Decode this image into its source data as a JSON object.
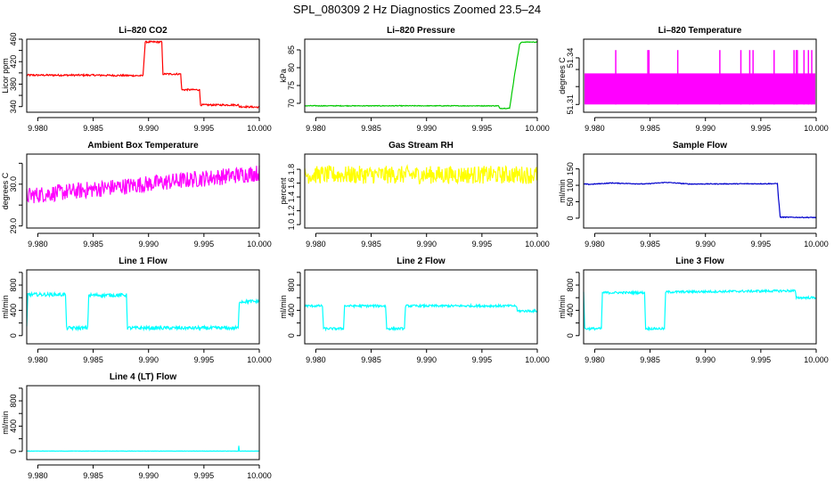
{
  "figure_title": "SPL_080309  2 Hz Diagnostics Zoomed 23.5–24",
  "chart_data": [
    {
      "type": "line",
      "title": "Li–820 CO2",
      "ylabel": "Licor ppm",
      "color": "#ff0000",
      "xlim": [
        9.979,
        10.0
      ],
      "xticks": [
        "9.980",
        "9.985",
        "9.990",
        "9.995",
        "10.000"
      ],
      "ylim": [
        330,
        460
      ],
      "yticks": [
        340,
        360,
        380,
        400,
        420,
        440,
        460
      ],
      "ytick_labels": [
        "340",
        "",
        "380",
        "",
        "420",
        "",
        "460"
      ],
      "x": [
        9.979,
        9.985,
        9.9895,
        9.9897,
        9.9912,
        9.9913,
        9.9929,
        9.993,
        9.9946,
        9.9947,
        9.9981,
        9.9982,
        10.0
      ],
      "y": [
        396,
        396,
        395,
        455,
        455,
        398,
        398,
        370,
        370,
        343,
        343,
        340,
        339
      ],
      "noise": 1.5
    },
    {
      "type": "line",
      "title": "Li–820 Pressure",
      "ylabel": "kPa",
      "color": "#00c800",
      "xlim": [
        9.979,
        10.0
      ],
      "xticks": [
        "9.980",
        "9.985",
        "9.990",
        "9.995",
        "10.000"
      ],
      "ylim": [
        67.5,
        88
      ],
      "yticks": [
        70,
        75,
        80,
        85
      ],
      "ytick_labels": [
        "70",
        "75",
        "80",
        "85"
      ],
      "x": [
        9.979,
        9.9965,
        9.9966,
        9.9975,
        9.998,
        9.9984,
        9.9986,
        10.0
      ],
      "y": [
        69.3,
        69.3,
        68.6,
        68.6,
        79,
        86.5,
        87.2,
        87.2
      ],
      "noise": 0.1
    },
    {
      "type": "line",
      "title": "Li–820 Temperature",
      "ylabel": "degrees C",
      "color": "#ff00ff",
      "xlim": [
        9.979,
        10.0
      ],
      "xticks": [
        "9.980",
        "9.985",
        "9.990",
        "9.995",
        "10.000"
      ],
      "ylim": [
        51.305,
        51.352
      ],
      "yticks": [
        51.31,
        51.3215,
        51.3325,
        51.34
      ],
      "ytick_labels": [
        "51.31",
        "",
        "",
        "51.34"
      ],
      "band": [
        51.31,
        51.33
      ],
      "spikes": [
        9.9819,
        9.9848,
        9.9849,
        9.9875,
        9.9913,
        9.9932,
        9.994,
        9.9943,
        9.9962,
        9.998,
        9.9982,
        9.9983,
        9.9989,
        9.9993,
        9.9996
      ],
      "spike_top": 51.345
    },
    {
      "type": "line",
      "title": "Ambient Box Temperature",
      "ylabel": "degrees C",
      "color": "#ff00ff",
      "xlim": [
        9.979,
        10.0
      ],
      "xticks": [
        "9.980",
        "9.985",
        "9.990",
        "9.995",
        "10.000"
      ],
      "ylim": [
        28.95,
        30.72
      ],
      "yticks": [
        29.0,
        29.5,
        30.0,
        30.5
      ],
      "ytick_labels": [
        "29.0",
        "",
        "30.0",
        ""
      ],
      "x": [
        9.979,
        10.0
      ],
      "y": [
        29.72,
        30.27
      ],
      "noise": 0.2
    },
    {
      "type": "line",
      "title": "Gas Stream RH",
      "ylabel": "percent",
      "color": "#ffff00",
      "xlim": [
        9.979,
        10.0
      ],
      "xticks": [
        "9.980",
        "9.985",
        "9.990",
        "9.995",
        "10.000"
      ],
      "ylim": [
        0.95,
        2.02
      ],
      "yticks": [
        1.0,
        1.2,
        1.4,
        1.6,
        1.8
      ],
      "ytick_labels": [
        "1.0",
        "1.2",
        "1.4",
        "1.6",
        "1.8"
      ],
      "x": [
        9.979,
        10.0
      ],
      "y": [
        1.72,
        1.72
      ],
      "noise": 0.13
    },
    {
      "type": "line",
      "title": "Sample Flow",
      "ylabel": "ml/min",
      "color": "#0000cc",
      "xlim": [
        9.979,
        10.0
      ],
      "xticks": [
        "9.980",
        "9.985",
        "9.990",
        "9.995",
        "10.000"
      ],
      "ylim": [
        -30,
        195
      ],
      "yticks": [
        0,
        50,
        100,
        150
      ],
      "ytick_labels": [
        "0",
        "50",
        "100",
        "150"
      ],
      "x": [
        9.979,
        9.9795,
        9.9815,
        9.9845,
        9.9865,
        9.9885,
        9.9965,
        9.9966,
        9.99675,
        10.0
      ],
      "y": [
        104,
        103,
        107,
        104,
        109,
        104,
        105,
        60,
        3,
        2
      ],
      "noise": 1.2
    },
    {
      "type": "line",
      "title": "Line 1 Flow",
      "ylabel": "ml/min",
      "color": "#00ffff",
      "xlim": [
        9.979,
        10.0
      ],
      "xticks": [
        "9.980",
        "9.985",
        "9.990",
        "9.995",
        "10.000"
      ],
      "ylim": [
        -130,
        1040
      ],
      "yticks": [
        0,
        200,
        400,
        600,
        800,
        1000
      ],
      "ytick_labels": [
        "0",
        "",
        "400",
        "",
        "800",
        ""
      ],
      "x": [
        9.979,
        9.9791,
        9.9825,
        9.9826,
        9.9845,
        9.9846,
        9.988,
        9.9881,
        9.9981,
        9.9982,
        10.0
      ],
      "y": [
        120,
        650,
        650,
        120,
        120,
        640,
        640,
        120,
        120,
        540,
        540
      ],
      "noise": 28
    },
    {
      "type": "line",
      "title": "Line 2 Flow",
      "ylabel": "ml/min",
      "color": "#00ffff",
      "xlim": [
        9.979,
        10.0
      ],
      "xticks": [
        "9.980",
        "9.985",
        "9.990",
        "9.995",
        "10.000"
      ],
      "ylim": [
        -130,
        1040
      ],
      "yticks": [
        0,
        200,
        400,
        600,
        800,
        1000
      ],
      "ytick_labels": [
        "0",
        "",
        "400",
        "",
        "800",
        ""
      ],
      "x": [
        9.979,
        9.9806,
        9.9807,
        9.9825,
        9.9826,
        9.9863,
        9.9864,
        9.988,
        9.9881,
        9.9981,
        9.9982,
        10.0
      ],
      "y": [
        470,
        470,
        110,
        110,
        470,
        470,
        110,
        110,
        470,
        470,
        390,
        390
      ],
      "noise": 18
    },
    {
      "type": "line",
      "title": "Line 3 Flow",
      "ylabel": "ml/min",
      "color": "#00ffff",
      "xlim": [
        9.979,
        10.0
      ],
      "xticks": [
        "9.980",
        "9.985",
        "9.990",
        "9.995",
        "10.000"
      ],
      "ylim": [
        -130,
        1040
      ],
      "yticks": [
        0,
        200,
        400,
        600,
        800,
        1000
      ],
      "ytick_labels": [
        "0",
        "",
        "400",
        "",
        "800",
        ""
      ],
      "x": [
        9.979,
        9.9791,
        9.9806,
        9.9807,
        9.9845,
        9.9846,
        9.9863,
        9.9864,
        9.9981,
        9.9982,
        10.0
      ],
      "y": [
        700,
        110,
        110,
        680,
        680,
        110,
        110,
        690,
        710,
        600,
        600
      ],
      "noise": 18
    },
    {
      "type": "line",
      "title": "Line 4 (LT) Flow",
      "ylabel": "ml/min",
      "color": "#00ffff",
      "xlim": [
        9.979,
        10.0
      ],
      "xticks": [
        "9.980",
        "9.985",
        "9.990",
        "9.995",
        "10.000"
      ],
      "ylim": [
        -130,
        1040
      ],
      "yticks": [
        0,
        200,
        400,
        600,
        800,
        1000
      ],
      "ytick_labels": [
        "0",
        "",
        "400",
        "",
        "800",
        ""
      ],
      "x": [
        9.979,
        9.9981,
        9.99815,
        9.9982,
        10.0
      ],
      "y": [
        5,
        5,
        90,
        5,
        5
      ],
      "noise": 2
    }
  ]
}
